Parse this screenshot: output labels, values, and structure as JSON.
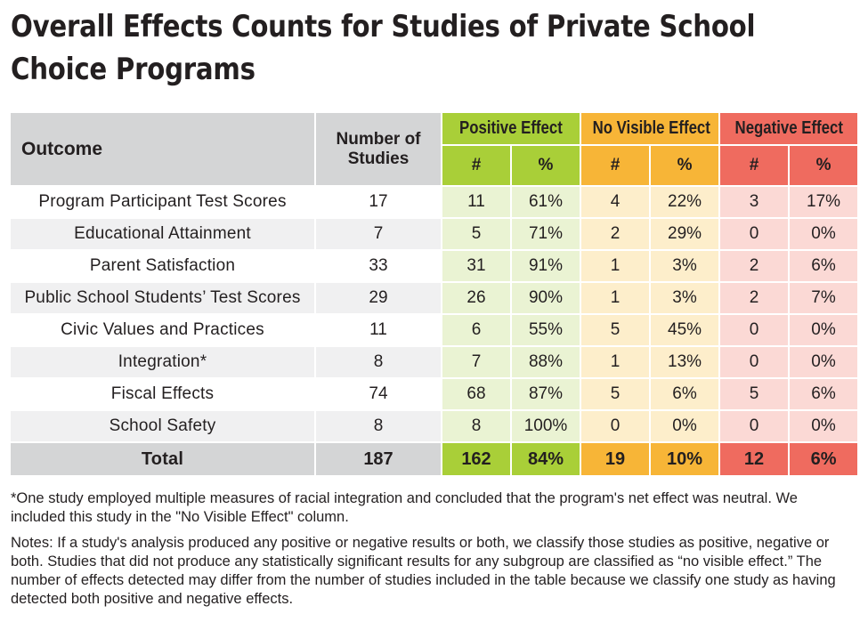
{
  "title_lines": [
    "Overall Effects Counts for Studies of Private School",
    "Choice Programs"
  ],
  "colors": {
    "positive": "#a9cf38",
    "no_visible": "#f7b537",
    "negative": "#ef6b5f",
    "header_grey": "#d4d5d6"
  },
  "chart_data": {
    "type": "table",
    "title": "Overall Effects Counts for Studies of Private School Choice Programs",
    "columns": {
      "outcome": "Outcome",
      "number_of_studies": "Number of Studies",
      "groups": [
        "Positive Effect",
        "No Visible Effect",
        "Negative Effect"
      ],
      "subcolumns": [
        "#",
        "%"
      ]
    },
    "rows": [
      {
        "outcome": "Program Participant Test Scores",
        "studies": "17",
        "pos_n": "11",
        "pos_pct": "61%",
        "nve_n": "4",
        "nve_pct": "22%",
        "neg_n": "3",
        "neg_pct": "17%"
      },
      {
        "outcome": "Educational Attainment",
        "studies": "7",
        "pos_n": "5",
        "pos_pct": "71%",
        "nve_n": "2",
        "nve_pct": "29%",
        "neg_n": "0",
        "neg_pct": "0%"
      },
      {
        "outcome": "Parent Satisfaction",
        "studies": "33",
        "pos_n": "31",
        "pos_pct": "91%",
        "nve_n": "1",
        "nve_pct": "3%",
        "neg_n": "2",
        "neg_pct": "6%"
      },
      {
        "outcome": "Public School Students’ Test Scores",
        "studies": "29",
        "pos_n": "26",
        "pos_pct": "90%",
        "nve_n": "1",
        "nve_pct": "3%",
        "neg_n": "2",
        "neg_pct": "7%"
      },
      {
        "outcome": "Civic Values and Practices",
        "studies": "11",
        "pos_n": "6",
        "pos_pct": "55%",
        "nve_n": "5",
        "nve_pct": "45%",
        "neg_n": "0",
        "neg_pct": "0%"
      },
      {
        "outcome": "Integration*",
        "studies": "8",
        "pos_n": "7",
        "pos_pct": "88%",
        "nve_n": "1",
        "nve_pct": "13%",
        "neg_n": "0",
        "neg_pct": "0%"
      },
      {
        "outcome": "Fiscal Effects",
        "studies": "74",
        "pos_n": "68",
        "pos_pct": "87%",
        "nve_n": "5",
        "nve_pct": "6%",
        "neg_n": "5",
        "neg_pct": "6%"
      },
      {
        "outcome": "School Safety",
        "studies": "8",
        "pos_n": "8",
        "pos_pct": "100%",
        "nve_n": "0",
        "nve_pct": "0%",
        "neg_n": "0",
        "neg_pct": "0%"
      }
    ],
    "total": {
      "outcome": "Total",
      "studies": "187",
      "pos_n": "162",
      "pos_pct": "84%",
      "nve_n": "19",
      "nve_pct": "10%",
      "neg_n": "12",
      "neg_pct": "6%"
    }
  },
  "footnote": "*One study employed multiple measures of racial integration and concluded that the program's net effect was neutral. We included this study in the \"No Visible Effect\" column.",
  "notes": "Notes: If a study's analysis produced any positive or negative results or both, we classify those studies as positive, negative or both. Studies that did not produce any statistically significant results for any subgroup are classified as “no visible effect.” The number of effects detected may differ from the number of studies included in the table because we classify one study as having detected both positive and negative effects."
}
